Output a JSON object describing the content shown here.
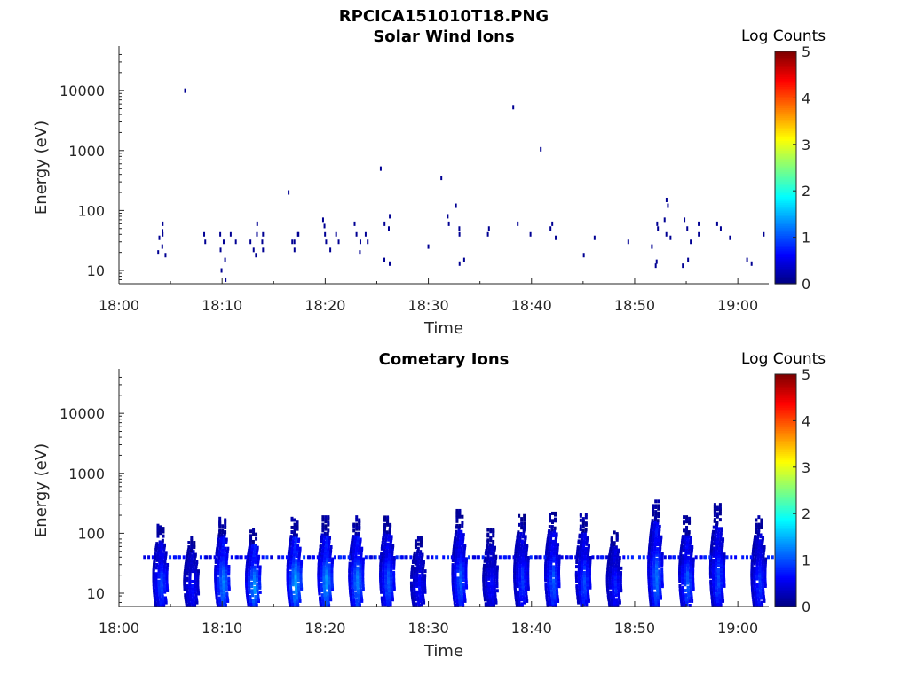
{
  "figure": {
    "title": "RPCICA151010T18.PNG"
  },
  "colorbar": {
    "label": "Log Counts",
    "ticks": [
      0,
      1,
      2,
      3,
      4,
      5
    ],
    "colormap": [
      "#00007f",
      "#0000ff",
      "#007fff",
      "#00ffff",
      "#7fff7f",
      "#ffff00",
      "#ff7f00",
      "#ff0000",
      "#7f0000"
    ]
  },
  "chart_data": [
    {
      "type": "heatmap",
      "title": "Solar Wind Ions",
      "xlabel": "Time",
      "ylabel": "Energy (eV)",
      "yscale": "log",
      "xlim": [
        "18:00",
        "19:03"
      ],
      "ylim": [
        6,
        45000
      ],
      "xticks": [
        "18:00",
        "18:10",
        "18:20",
        "18:30",
        "18:40",
        "18:50",
        "19:00"
      ],
      "yticks": [
        "10",
        "100",
        "1000",
        "10000"
      ],
      "clim": [
        0,
        5
      ],
      "points": [
        {
          "t": "18:04",
          "e": 45,
          "v": 0.1
        },
        {
          "t": "18:04",
          "e": 35,
          "v": 0.1
        },
        {
          "t": "18:04",
          "e": 25,
          "v": 0.1
        },
        {
          "t": "18:04",
          "e": 18,
          "v": 0.1
        },
        {
          "t": "18:04",
          "e": 60,
          "v": 0.1
        },
        {
          "t": "18:04",
          "e": 40,
          "v": 0.1
        },
        {
          "t": "18:04",
          "e": 20,
          "v": 0.1
        },
        {
          "t": "18:06",
          "e": 10000,
          "v": 0.1
        },
        {
          "t": "18:08",
          "e": 40,
          "v": 0.1
        },
        {
          "t": "18:08",
          "e": 30,
          "v": 0.1
        },
        {
          "t": "18:10",
          "e": 15,
          "v": 0.1
        },
        {
          "t": "18:10",
          "e": 10,
          "v": 0.1
        },
        {
          "t": "18:10",
          "e": 7,
          "v": 0.1
        },
        {
          "t": "18:10",
          "e": 40,
          "v": 0.1
        },
        {
          "t": "18:10",
          "e": 30,
          "v": 0.1
        },
        {
          "t": "18:10",
          "e": 22,
          "v": 0.1
        },
        {
          "t": "18:11",
          "e": 40,
          "v": 0.1
        },
        {
          "t": "18:11",
          "e": 30,
          "v": 0.1
        },
        {
          "t": "18:13",
          "e": 60,
          "v": 0.1
        },
        {
          "t": "18:13",
          "e": 40,
          "v": 0.1
        },
        {
          "t": "18:13",
          "e": 30,
          "v": 0.1
        },
        {
          "t": "18:13",
          "e": 22,
          "v": 0.1
        },
        {
          "t": "18:13",
          "e": 18,
          "v": 0.1
        },
        {
          "t": "18:14",
          "e": 40,
          "v": 0.1
        },
        {
          "t": "18:14",
          "e": 30,
          "v": 0.1
        },
        {
          "t": "18:14",
          "e": 22,
          "v": 0.1
        },
        {
          "t": "18:16",
          "e": 200,
          "v": 0.1
        },
        {
          "t": "18:17",
          "e": 40,
          "v": 0.1
        },
        {
          "t": "18:17",
          "e": 30,
          "v": 0.1
        },
        {
          "t": "18:17",
          "e": 22,
          "v": 0.1
        },
        {
          "t": "18:17",
          "e": 40,
          "v": 0.1
        },
        {
          "t": "18:17",
          "e": 30,
          "v": 0.1
        },
        {
          "t": "18:20",
          "e": 70,
          "v": 0.1
        },
        {
          "t": "18:20",
          "e": 55,
          "v": 0.1
        },
        {
          "t": "18:20",
          "e": 40,
          "v": 0.1
        },
        {
          "t": "18:20",
          "e": 30,
          "v": 0.1
        },
        {
          "t": "18:20",
          "e": 22,
          "v": 0.1
        },
        {
          "t": "18:21",
          "e": 40,
          "v": 0.1
        },
        {
          "t": "18:21",
          "e": 30,
          "v": 0.1
        },
        {
          "t": "18:23",
          "e": 60,
          "v": 0.1
        },
        {
          "t": "18:23",
          "e": 40,
          "v": 0.1
        },
        {
          "t": "18:23",
          "e": 30,
          "v": 0.1
        },
        {
          "t": "18:23",
          "e": 20,
          "v": 0.1
        },
        {
          "t": "18:24",
          "e": 40,
          "v": 0.1
        },
        {
          "t": "18:24",
          "e": 30,
          "v": 0.1
        },
        {
          "t": "18:25",
          "e": 500,
          "v": 0.1
        },
        {
          "t": "18:26",
          "e": 80,
          "v": 0.1
        },
        {
          "t": "18:26",
          "e": 60,
          "v": 0.1
        },
        {
          "t": "18:26",
          "e": 50,
          "v": 0.1
        },
        {
          "t": "18:26",
          "e": 15,
          "v": 0.1
        },
        {
          "t": "18:26",
          "e": 13,
          "v": 0.1
        },
        {
          "t": "18:30",
          "e": 25,
          "v": 0.1
        },
        {
          "t": "18:31",
          "e": 350,
          "v": 0.1
        },
        {
          "t": "18:32",
          "e": 80,
          "v": 0.1
        },
        {
          "t": "18:32",
          "e": 60,
          "v": 0.1
        },
        {
          "t": "18:33",
          "e": 50,
          "v": 0.1
        },
        {
          "t": "18:33",
          "e": 40,
          "v": 0.1
        },
        {
          "t": "18:33",
          "e": 15,
          "v": 0.1
        },
        {
          "t": "18:33",
          "e": 13,
          "v": 0.1
        },
        {
          "t": "18:33",
          "e": 120,
          "v": 0.1
        },
        {
          "t": "18:36",
          "e": 50,
          "v": 0.1
        },
        {
          "t": "18:36",
          "e": 40,
          "v": 0.1
        },
        {
          "t": "18:38",
          "e": 5300,
          "v": 0.1
        },
        {
          "t": "18:39",
          "e": 60,
          "v": 0.1
        },
        {
          "t": "18:40",
          "e": 40,
          "v": 0.1
        },
        {
          "t": "18:41",
          "e": 1050,
          "v": 0.1
        },
        {
          "t": "18:42",
          "e": 60,
          "v": 0.1
        },
        {
          "t": "18:42",
          "e": 50,
          "v": 0.1
        },
        {
          "t": "18:42",
          "e": 35,
          "v": 0.1
        },
        {
          "t": "18:45",
          "e": 18,
          "v": 0.1
        },
        {
          "t": "18:46",
          "e": 35,
          "v": 0.1
        },
        {
          "t": "18:49",
          "e": 30,
          "v": 0.1
        },
        {
          "t": "18:52",
          "e": 60,
          "v": 0.1
        },
        {
          "t": "18:52",
          "e": 50,
          "v": 0.1
        },
        {
          "t": "18:52",
          "e": 25,
          "v": 0.1
        },
        {
          "t": "18:52",
          "e": 14,
          "v": 0.1
        },
        {
          "t": "18:52",
          "e": 12,
          "v": 0.1
        },
        {
          "t": "18:53",
          "e": 150,
          "v": 0.1
        },
        {
          "t": "18:53",
          "e": 120,
          "v": 0.1
        },
        {
          "t": "18:53",
          "e": 70,
          "v": 0.1
        },
        {
          "t": "18:53",
          "e": 40,
          "v": 0.1
        },
        {
          "t": "18:53",
          "e": 35,
          "v": 0.1
        },
        {
          "t": "18:55",
          "e": 70,
          "v": 0.1
        },
        {
          "t": "18:55",
          "e": 50,
          "v": 0.1
        },
        {
          "t": "18:55",
          "e": 30,
          "v": 0.1
        },
        {
          "t": "18:55",
          "e": 15,
          "v": 0.1
        },
        {
          "t": "18:55",
          "e": 12,
          "v": 0.1
        },
        {
          "t": "18:56",
          "e": 60,
          "v": 0.1
        },
        {
          "t": "18:56",
          "e": 40,
          "v": 0.1
        },
        {
          "t": "18:58",
          "e": 60,
          "v": 0.1
        },
        {
          "t": "18:58",
          "e": 50,
          "v": 0.1
        },
        {
          "t": "18:59",
          "e": 35,
          "v": 0.1
        },
        {
          "t": "19:01",
          "e": 15,
          "v": 0.1
        },
        {
          "t": "19:01",
          "e": 13,
          "v": 0.1
        },
        {
          "t": "19:02",
          "e": 40,
          "v": 0.1
        }
      ]
    },
    {
      "type": "heatmap",
      "title": "Cometary Ions",
      "xlabel": "Time",
      "ylabel": "Energy (eV)",
      "yscale": "log",
      "xlim": [
        "18:00",
        "19:03"
      ],
      "ylim": [
        6,
        45000
      ],
      "xticks": [
        "18:00",
        "18:10",
        "18:20",
        "18:30",
        "18:40",
        "18:50",
        "19:00"
      ],
      "yticks": [
        "10",
        "100",
        "1000",
        "10000"
      ],
      "clim": [
        0,
        5
      ],
      "bursts": [
        {
          "t": "18:04",
          "emin": 6,
          "emax": 130,
          "peak": 0.9
        },
        {
          "t": "18:07",
          "emin": 6,
          "emax": 80,
          "peak": 0.6
        },
        {
          "t": "18:10",
          "emin": 6,
          "emax": 170,
          "peak": 1.2
        },
        {
          "t": "18:13",
          "emin": 6,
          "emax": 110,
          "peak": 1.3
        },
        {
          "t": "18:17",
          "emin": 6,
          "emax": 170,
          "peak": 1.4
        },
        {
          "t": "18:20",
          "emin": 6,
          "emax": 180,
          "peak": 1.3
        },
        {
          "t": "18:23",
          "emin": 6,
          "emax": 180,
          "peak": 1.2
        },
        {
          "t": "18:26",
          "emin": 6,
          "emax": 200,
          "peak": 1.0
        },
        {
          "t": "18:29",
          "emin": 6,
          "emax": 80,
          "peak": 0.6
        },
        {
          "t": "18:33",
          "emin": 6,
          "emax": 230,
          "peak": 1.0
        },
        {
          "t": "18:36",
          "emin": 6,
          "emax": 110,
          "peak": 0.6
        },
        {
          "t": "18:39",
          "emin": 6,
          "emax": 200,
          "peak": 0.8
        },
        {
          "t": "18:42",
          "emin": 6,
          "emax": 220,
          "peak": 1.0
        },
        {
          "t": "18:45",
          "emin": 6,
          "emax": 200,
          "peak": 0.9
        },
        {
          "t": "18:48",
          "emin": 6,
          "emax": 100,
          "peak": 0.7
        },
        {
          "t": "18:52",
          "emin": 6,
          "emax": 330,
          "peak": 1.1
        },
        {
          "t": "18:55",
          "emin": 6,
          "emax": 180,
          "peak": 1.0
        },
        {
          "t": "18:58",
          "emin": 6,
          "emax": 290,
          "peak": 0.9
        },
        {
          "t": "19:02",
          "emin": 6,
          "emax": 180,
          "peak": 0.8
        }
      ]
    }
  ]
}
